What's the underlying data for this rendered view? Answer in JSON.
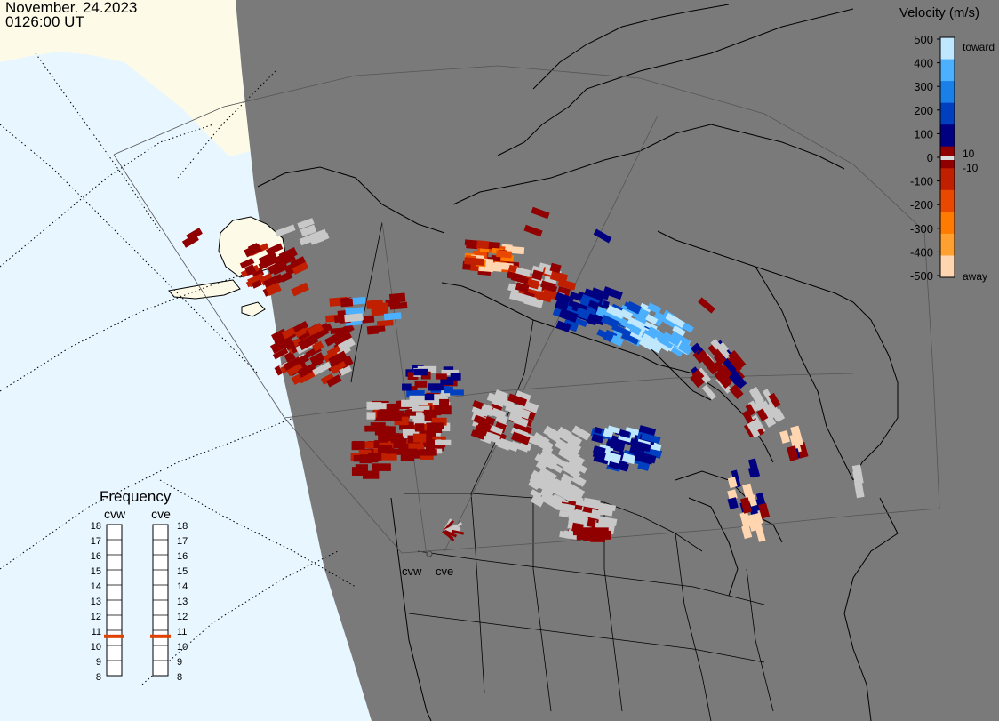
{
  "header": {
    "date": "November. 24.2023",
    "time": "0126:00 UT"
  },
  "colorbar": {
    "title": "Velocity (m/s)",
    "ticks": [
      "500",
      "400",
      "300",
      "200",
      "100",
      "0",
      "-100",
      "-200",
      "-300",
      "-400",
      "-500"
    ],
    "upper_label": "toward",
    "lower_label": "away",
    "inner_pos": "10",
    "inner_neg": "-10",
    "colors": [
      "#ffd6b0",
      "#ffa030",
      "#ff7a00",
      "#e84800",
      "#c02000",
      "#900000",
      "#000080",
      "#0040c0",
      "#1a80e8",
      "#4db0ff",
      "#bfe8ff"
    ]
  },
  "frequency": {
    "title": "Frequency",
    "radars": [
      "cvw",
      "cve"
    ],
    "scale": [
      "18",
      "17",
      "16",
      "15",
      "14",
      "13",
      "12",
      "11",
      "10",
      "9",
      "8"
    ],
    "cvw_mhz": 10.6,
    "cve_mhz": 10.6,
    "marker_color": "#e04000"
  },
  "radar_sites": [
    "cvw",
    "cve"
  ],
  "palette": {
    "land": "#7a7a7a",
    "ocean": "#e8f6ff",
    "sunlit_land": "#fdfbe8",
    "ground_scatter": "#c8c8c8"
  }
}
